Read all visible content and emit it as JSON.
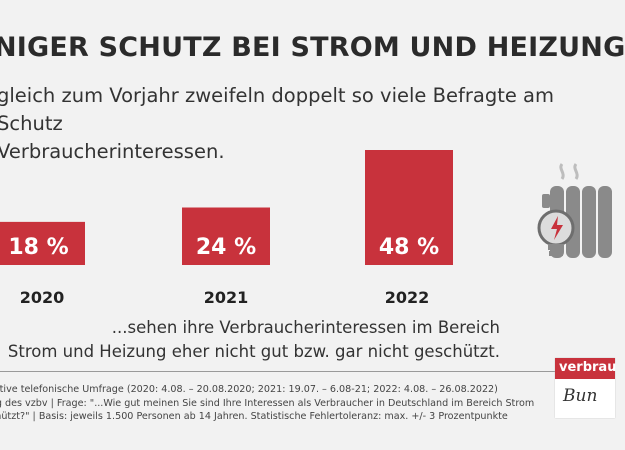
{
  "title": "NIGER SCHUTZ BEI STROM UND HEIZUNG",
  "subtitle": "gleich zum Vorjahr zweifeln doppelt so viele Befragte am Schutz\nVerbraucherinteressen.",
  "note": "...sehen ihre Verbraucherinteressen im Bereich\nStrom und Heizung eher nicht gut bzw. gar nicht geschützt.",
  "source": "tative telefonische Umfrage (2020: 4.08. – 20.08.2020; 2021: 19.07. – 6.08-21; 2022: 4.08. – 26.08.2022)\nag des vzbv | Frage: \"...Wie gut meinen Sie sind Ihre Interessen als Verbraucher in Deutschland im Bereich Strom\nchützt?\" | Basis: jeweils 1.500 Personen ab 14 Jahren. Statistische Fehlertoleranz: max. +/- 3 Prozentpunkte",
  "logo": {
    "text": "verbrau",
    "script": "Bun"
  },
  "illustration": {
    "icon": "radiator-with-lightbulb-icon"
  },
  "colors": {
    "bar": "#c8323c",
    "background": "#f2f2f2",
    "text": "#222222"
  },
  "chart_data": {
    "type": "bar",
    "categories": [
      "2020",
      "2021",
      "2022"
    ],
    "values": [
      18,
      24,
      48
    ],
    "value_labels": [
      "18 %",
      "24 %",
      "48 %"
    ],
    "unit": "%",
    "ylim": [
      0,
      48
    ],
    "grid": false,
    "legend": "none"
  }
}
